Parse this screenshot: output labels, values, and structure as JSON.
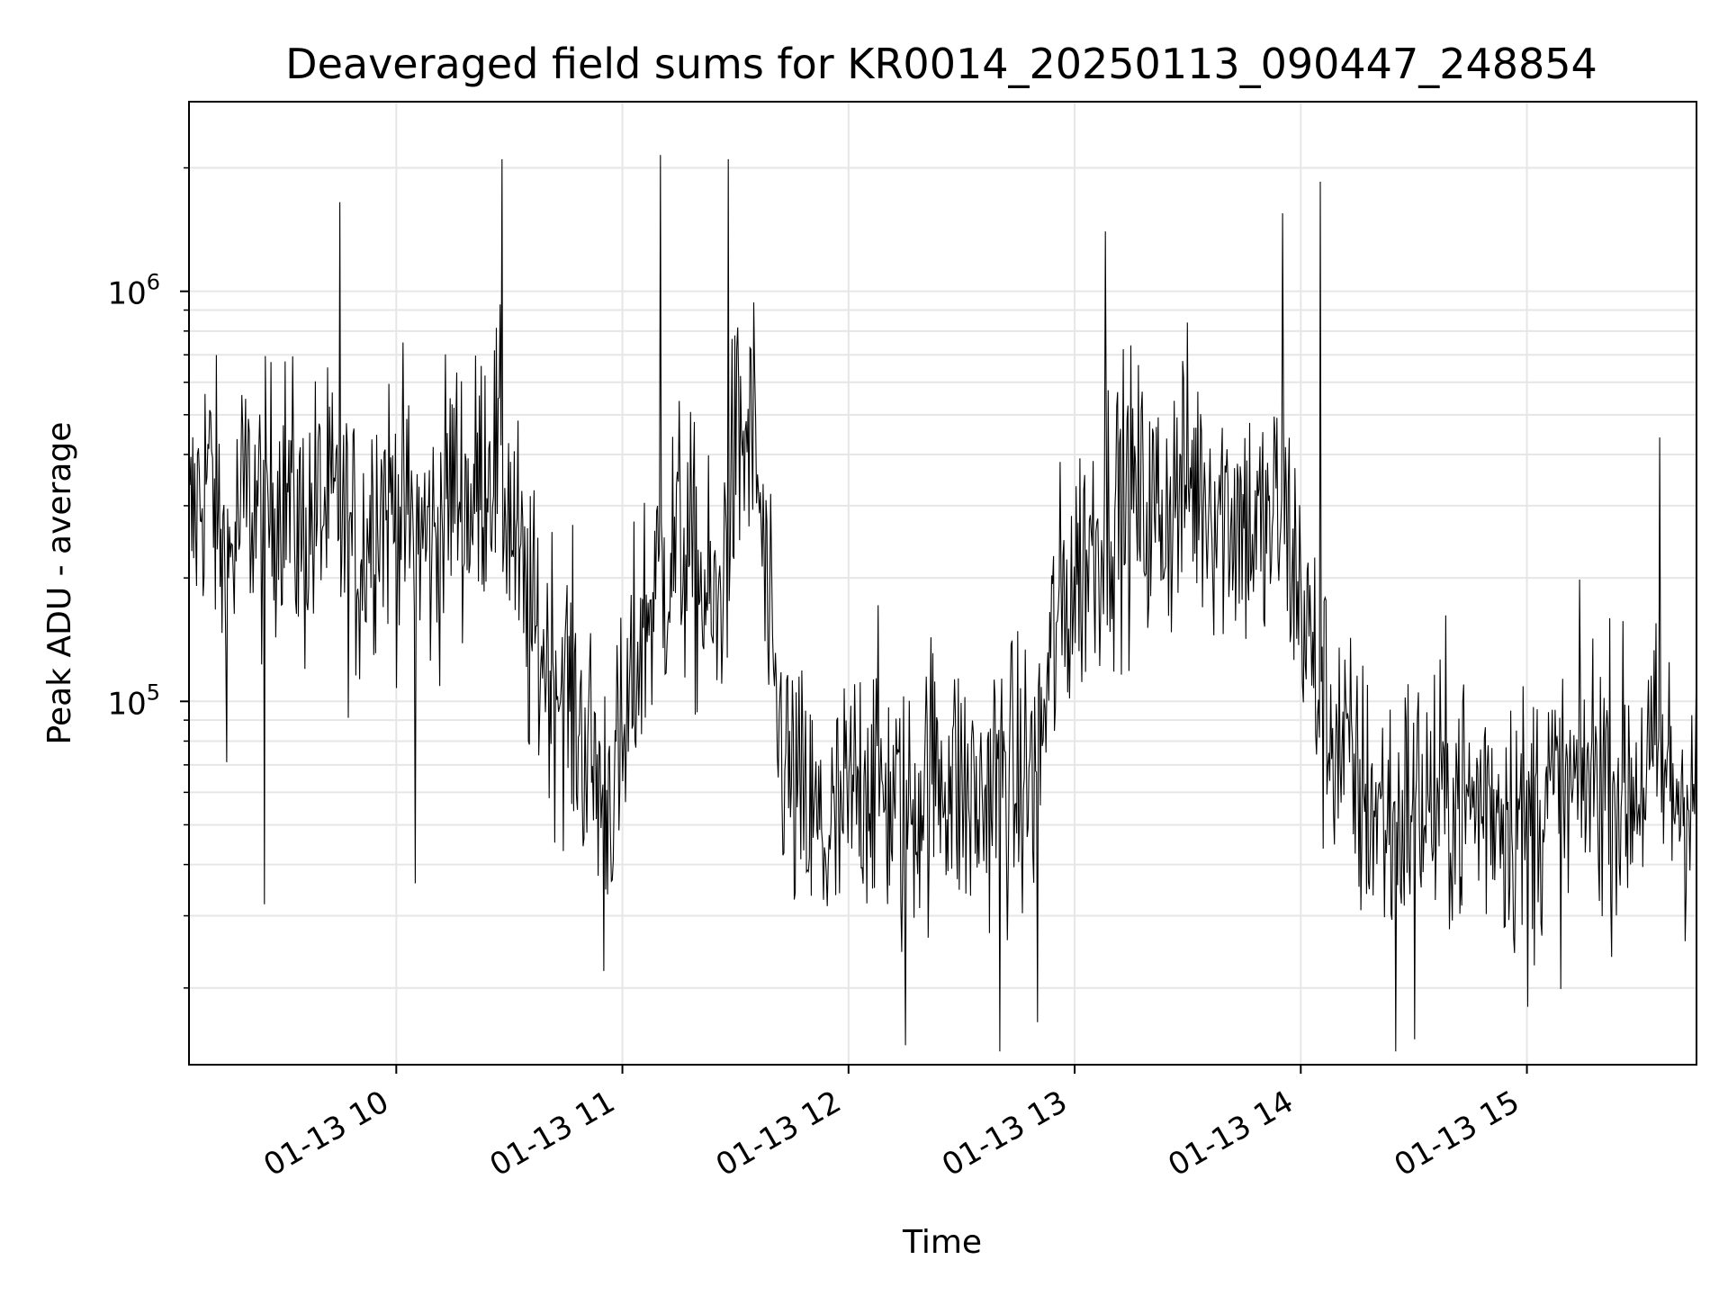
{
  "chart_data": {
    "type": "line",
    "title": "Deaveraged field sums for KR0014_20250113_090447_248854",
    "xlabel": "Time",
    "ylabel": "Peak ADU - average",
    "y_scale": "log",
    "grid": true,
    "colors": {
      "line": "#000000",
      "grid": "#e6e6e6",
      "axis": "#000000"
    },
    "xlim": [
      "2025-01-13 09:05",
      "2025-01-13 15:45"
    ],
    "ylim": [
      13000,
      2900000
    ],
    "x_ticks": [
      {
        "time": "2025-01-13 10:00",
        "label": "01-13 10"
      },
      {
        "time": "2025-01-13 11:00",
        "label": "01-13 11"
      },
      {
        "time": "2025-01-13 12:00",
        "label": "01-13 12"
      },
      {
        "time": "2025-01-13 13:00",
        "label": "01-13 13"
      },
      {
        "time": "2025-01-13 14:00",
        "label": "01-13 14"
      },
      {
        "time": "2025-01-13 15:00",
        "label": "01-13 15"
      }
    ],
    "y_ticks": [
      {
        "value": 100000,
        "base": "10",
        "exp": "5"
      },
      {
        "value": 1000000,
        "base": "10",
        "exp": "6"
      }
    ],
    "series": [
      {
        "points": [
          [
            "2025-01-13 09:05",
            250000
          ],
          [
            "2025-01-13 09:10",
            380000
          ],
          [
            "2025-01-13 09:15",
            200000
          ],
          [
            "2025-01-13 09:20",
            320000
          ],
          [
            "2025-01-13 09:25",
            280000
          ],
          [
            "2025-01-13 09:30",
            350000
          ],
          [
            "2025-01-13 09:35",
            250000
          ],
          [
            "2025-01-13 09:40",
            300000
          ],
          [
            "2025-01-13 09:45",
            270000
          ],
          [
            "2025-01-13 09:50",
            220000
          ],
          [
            "2025-01-13 09:55",
            320000
          ],
          [
            "2025-01-13 10:00",
            300000
          ],
          [
            "2025-01-13 10:05",
            260000
          ],
          [
            "2025-01-13 10:10",
            240000
          ],
          [
            "2025-01-13 10:15",
            350000
          ],
          [
            "2025-01-13 10:20",
            300000
          ],
          [
            "2025-01-13 10:25",
            420000
          ],
          [
            "2025-01-13 10:30",
            300000
          ],
          [
            "2025-01-13 10:35",
            150000
          ],
          [
            "2025-01-13 10:40",
            130000
          ],
          [
            "2025-01-13 10:45",
            110000
          ],
          [
            "2025-01-13 10:50",
            80000
          ],
          [
            "2025-01-13 10:55",
            60000
          ],
          [
            "2025-01-13 11:00",
            70000
          ],
          [
            "2025-01-13 11:05",
            150000
          ],
          [
            "2025-01-13 11:10",
            200000
          ],
          [
            "2025-01-13 11:15",
            250000
          ],
          [
            "2025-01-13 11:20",
            200000
          ],
          [
            "2025-01-13 11:25",
            150000
          ],
          [
            "2025-01-13 11:30",
            400000
          ],
          [
            "2025-01-13 11:35",
            450000
          ],
          [
            "2025-01-13 11:40",
            100000
          ],
          [
            "2025-01-13 11:45",
            60000
          ],
          [
            "2025-01-13 11:50",
            50000
          ],
          [
            "2025-01-13 11:55",
            45000
          ],
          [
            "2025-01-13 12:00",
            55000
          ],
          [
            "2025-01-13 12:05",
            70000
          ],
          [
            "2025-01-13 12:10",
            60000
          ],
          [
            "2025-01-13 12:15",
            50000
          ],
          [
            "2025-01-13 12:20",
            65000
          ],
          [
            "2025-01-13 12:25",
            70000
          ],
          [
            "2025-01-13 12:30",
            60000
          ],
          [
            "2025-01-13 12:35",
            55000
          ],
          [
            "2025-01-13 12:40",
            70000
          ],
          [
            "2025-01-13 12:45",
            60000
          ],
          [
            "2025-01-13 12:50",
            70000
          ],
          [
            "2025-01-13 12:55",
            150000
          ],
          [
            "2025-01-13 13:00",
            200000
          ],
          [
            "2025-01-13 13:05",
            250000
          ],
          [
            "2025-01-13 13:10",
            300000
          ],
          [
            "2025-01-13 13:15",
            320000
          ],
          [
            "2025-01-13 13:20",
            280000
          ],
          [
            "2025-01-13 13:25",
            300000
          ],
          [
            "2025-01-13 13:30",
            350000
          ],
          [
            "2025-01-13 13:35",
            330000
          ],
          [
            "2025-01-13 13:40",
            300000
          ],
          [
            "2025-01-13 13:45",
            280000
          ],
          [
            "2025-01-13 13:50",
            250000
          ],
          [
            "2025-01-13 13:55",
            300000
          ],
          [
            "2025-01-13 14:00",
            180000
          ],
          [
            "2025-01-13 14:05",
            100000
          ],
          [
            "2025-01-13 14:10",
            80000
          ],
          [
            "2025-01-13 14:15",
            60000
          ],
          [
            "2025-01-13 14:20",
            55000
          ],
          [
            "2025-01-13 14:25",
            50000
          ],
          [
            "2025-01-13 14:30",
            60000
          ],
          [
            "2025-01-13 14:35",
            55000
          ],
          [
            "2025-01-13 14:40",
            60000
          ],
          [
            "2025-01-13 14:45",
            55000
          ],
          [
            "2025-01-13 14:50",
            60000
          ],
          [
            "2025-01-13 14:55",
            55000
          ],
          [
            "2025-01-13 15:00",
            50000
          ],
          [
            "2025-01-13 15:05",
            60000
          ],
          [
            "2025-01-13 15:10",
            55000
          ],
          [
            "2025-01-13 15:15",
            65000
          ],
          [
            "2025-01-13 15:20",
            70000
          ],
          [
            "2025-01-13 15:25",
            60000
          ],
          [
            "2025-01-13 15:30",
            65000
          ],
          [
            "2025-01-13 15:35",
            70000
          ],
          [
            "2025-01-13 15:40",
            60000
          ],
          [
            "2025-01-13 15:45",
            65000
          ]
        ],
        "peaks": [
          [
            "2025-01-13 09:45",
            1650000
          ],
          [
            "2025-01-13 10:28",
            2100000
          ],
          [
            "2025-01-13 11:10",
            2150000
          ],
          [
            "2025-01-13 11:28",
            2100000
          ],
          [
            "2025-01-13 13:08",
            1400000
          ],
          [
            "2025-01-13 13:55",
            1550000
          ],
          [
            "2025-01-13 14:05",
            1850000
          ],
          [
            "2025-01-13 15:35",
            440000
          ]
        ],
        "troughs": [
          [
            "2025-01-13 09:25",
            32000
          ],
          [
            "2025-01-13 10:05",
            36000
          ],
          [
            "2025-01-13 10:55",
            22000
          ],
          [
            "2025-01-13 12:15",
            14500
          ],
          [
            "2025-01-13 12:40",
            14000
          ],
          [
            "2025-01-13 12:50",
            16500
          ],
          [
            "2025-01-13 14:25",
            14000
          ],
          [
            "2025-01-13 14:30",
            15000
          ],
          [
            "2025-01-13 15:00",
            18000
          ]
        ]
      }
    ]
  }
}
